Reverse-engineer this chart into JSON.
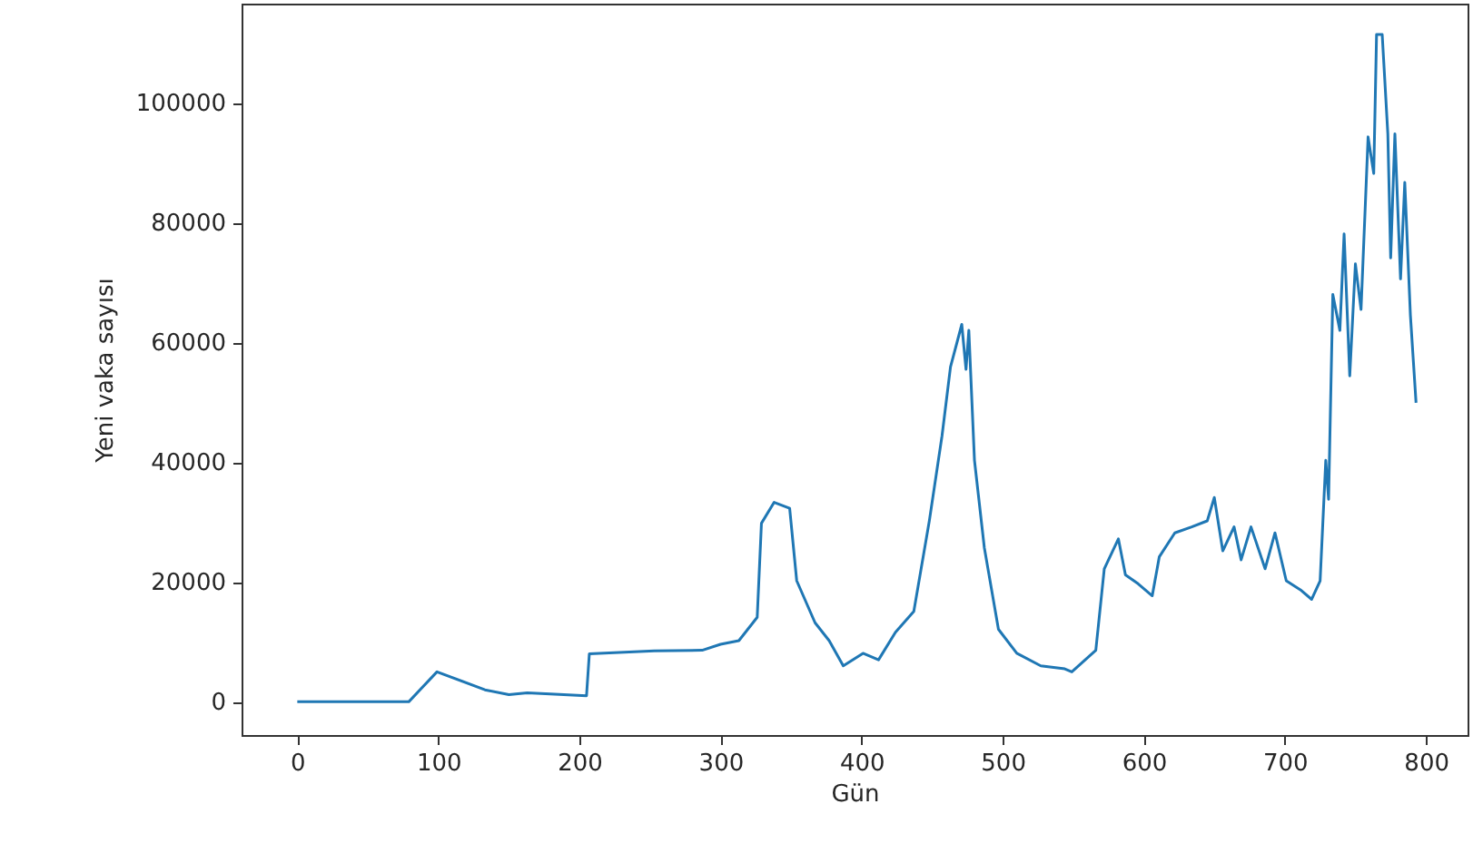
{
  "chart_data": {
    "type": "line",
    "xlabel": "Gün",
    "ylabel": "Yeni vaka sayısı",
    "xlim": [
      -39.5,
      829.5
    ],
    "ylim": [
      -5550,
      116550
    ],
    "xticks": [
      0,
      100,
      200,
      300,
      400,
      500,
      600,
      700,
      800
    ],
    "yticks": [
      0,
      20000,
      40000,
      60000,
      80000,
      100000
    ],
    "grid": false,
    "series": [
      {
        "color": "#1f77b4",
        "x": [
          0,
          79,
          99,
          133,
          150,
          163,
          205,
          207,
          253,
          287,
          300,
          313,
          326,
          329,
          338,
          349,
          354,
          367,
          377,
          387,
          401,
          412,
          424,
          437,
          448,
          457,
          463,
          471,
          474,
          476,
          480,
          487,
          497,
          510,
          527,
          544,
          549,
          566,
          572,
          582,
          587,
          596,
          606,
          611,
          622,
          634,
          645,
          650,
          656,
          664,
          669,
          676,
          686,
          693,
          701,
          711,
          719,
          725,
          729,
          731,
          734,
          739,
          742,
          746,
          750,
          754,
          759,
          763,
          765,
          769,
          773,
          775,
          778,
          782,
          785,
          789,
          793
        ],
        "values": [
          0,
          0,
          5000,
          2000,
          1200,
          1500,
          1000,
          8000,
          8500,
          8600,
          9600,
          10200,
          14100,
          29800,
          33300,
          32300,
          20200,
          13200,
          10200,
          6000,
          8100,
          7000,
          11600,
          15100,
          30200,
          44400,
          55900,
          63000,
          55500,
          62000,
          40300,
          25700,
          12100,
          8100,
          6000,
          5500,
          5000,
          8600,
          22200,
          27200,
          21200,
          19700,
          17700,
          24200,
          28200,
          29200,
          30200,
          34100,
          25200,
          29200,
          23700,
          29200,
          22200,
          28200,
          20200,
          18700,
          17100,
          20200,
          40300,
          33800,
          68000,
          62000,
          78100,
          54400,
          73100,
          65500,
          94300,
          88200,
          111400,
          111400,
          94800,
          74100,
          94800,
          70600,
          86700,
          64500,
          49900
        ]
      }
    ]
  }
}
